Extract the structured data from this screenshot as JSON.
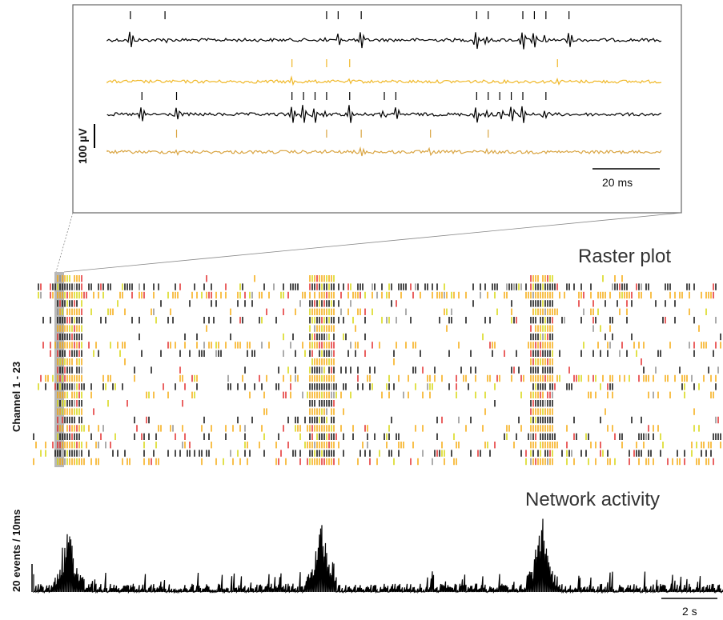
{
  "chart_data": [
    {
      "type": "line",
      "panel": "inset",
      "title": "",
      "scale_bars": {
        "voltage": "100 µV",
        "time": "20 ms"
      },
      "series": [
        {
          "color": "#000000",
          "spike_times_ms": [
            2,
            5,
            19,
            20,
            22,
            32,
            33,
            36,
            37,
            38,
            40
          ]
        },
        {
          "color": "#f0b828",
          "spike_times_ms": [
            16,
            19,
            21,
            39
          ]
        },
        {
          "color": "#000000",
          "spike_times_ms": [
            3,
            6,
            16,
            17,
            18,
            19,
            21,
            24,
            25,
            32,
            33,
            34,
            35,
            36,
            38
          ]
        },
        {
          "color": "#d9a441",
          "spike_times_ms": [
            6,
            19,
            22,
            28,
            33
          ]
        }
      ],
      "legend": "none",
      "grid": false
    },
    {
      "type": "scatter",
      "panel": "raster",
      "title": "Raster plot",
      "ylabel": "Channel 1 - 23",
      "channels": 23,
      "colors": [
        "#f5a500",
        "#000000",
        "#d4d400",
        "#e02020",
        "#888888"
      ],
      "legend": "none",
      "grid": false
    },
    {
      "type": "line",
      "panel": "network",
      "title": "Network activity",
      "ylabel": "20 events / 10ms",
      "scale_bars": {
        "time": "2 s"
      },
      "x_range_s": [
        0,
        17.5
      ],
      "bursts": [
        {
          "t_s": 0.9,
          "peak_events": 34
        },
        {
          "t_s": 7.3,
          "peak_events": 38
        },
        {
          "t_s": 12.9,
          "peak_events": 38
        }
      ],
      "baseline_events": 4,
      "legend": "none",
      "grid": false
    }
  ]
}
